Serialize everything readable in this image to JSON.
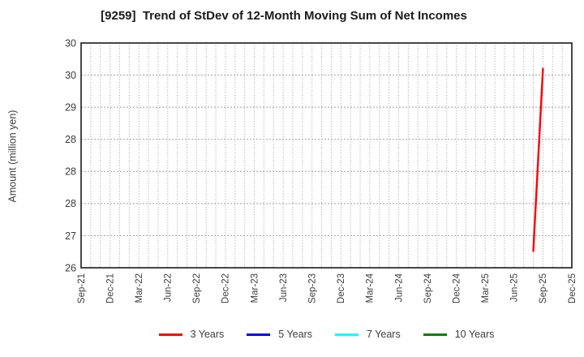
{
  "chart_data": {
    "type": "line",
    "title": "[9259]  Trend of StDev of 12-Month Moving Sum of Net Incomes",
    "ylabel": "Amount (million yen)",
    "grid": true,
    "legend_position": "bottom-center",
    "y_axis": {
      "min": 26.5,
      "max": 30.0,
      "tick_step": 0.5,
      "tick_values": [
        30.0,
        29.5,
        29.0,
        28.5,
        28.0,
        27.5,
        27.0,
        26.5
      ],
      "tick_labels": [
        "30",
        "30",
        "29",
        "28",
        "28",
        "28",
        "27",
        "26"
      ]
    },
    "x_axis": {
      "tick_labels": [
        "Sep-21",
        "Dec-21",
        "Mar-22",
        "Jun-22",
        "Sep-22",
        "Dec-22",
        "Mar-23",
        "Jun-23",
        "Sep-23",
        "Dec-23",
        "Mar-24",
        "Jun-24",
        "Sep-24",
        "Dec-24",
        "Mar-25",
        "Jun-25",
        "Sep-25",
        "Dec-25"
      ],
      "tick_month_indices": [
        0,
        3,
        6,
        9,
        12,
        15,
        18,
        21,
        24,
        27,
        30,
        33,
        36,
        39,
        42,
        45,
        48,
        51
      ],
      "months_total": 51,
      "minor_grid": "monthly"
    },
    "series": [
      {
        "name": "3 Years",
        "color": "#ff0000",
        "points": [
          {
            "month": "Aug-25",
            "month_index": 47,
            "value": 26.76
          },
          {
            "month": "Sep-25",
            "month_index": 48,
            "value": 29.6
          }
        ]
      },
      {
        "name": "5 Years",
        "color": "#0000ff",
        "points": []
      },
      {
        "name": "7 Years",
        "color": "#00ffff",
        "points": []
      },
      {
        "name": "10 Years",
        "color": "#008000",
        "points": []
      }
    ]
  },
  "colors": {
    "frame": "#1a1a1a",
    "grid": "#a0a0a0",
    "tick_text": "#3c3c3c",
    "title_text": "#1a1a1a"
  }
}
